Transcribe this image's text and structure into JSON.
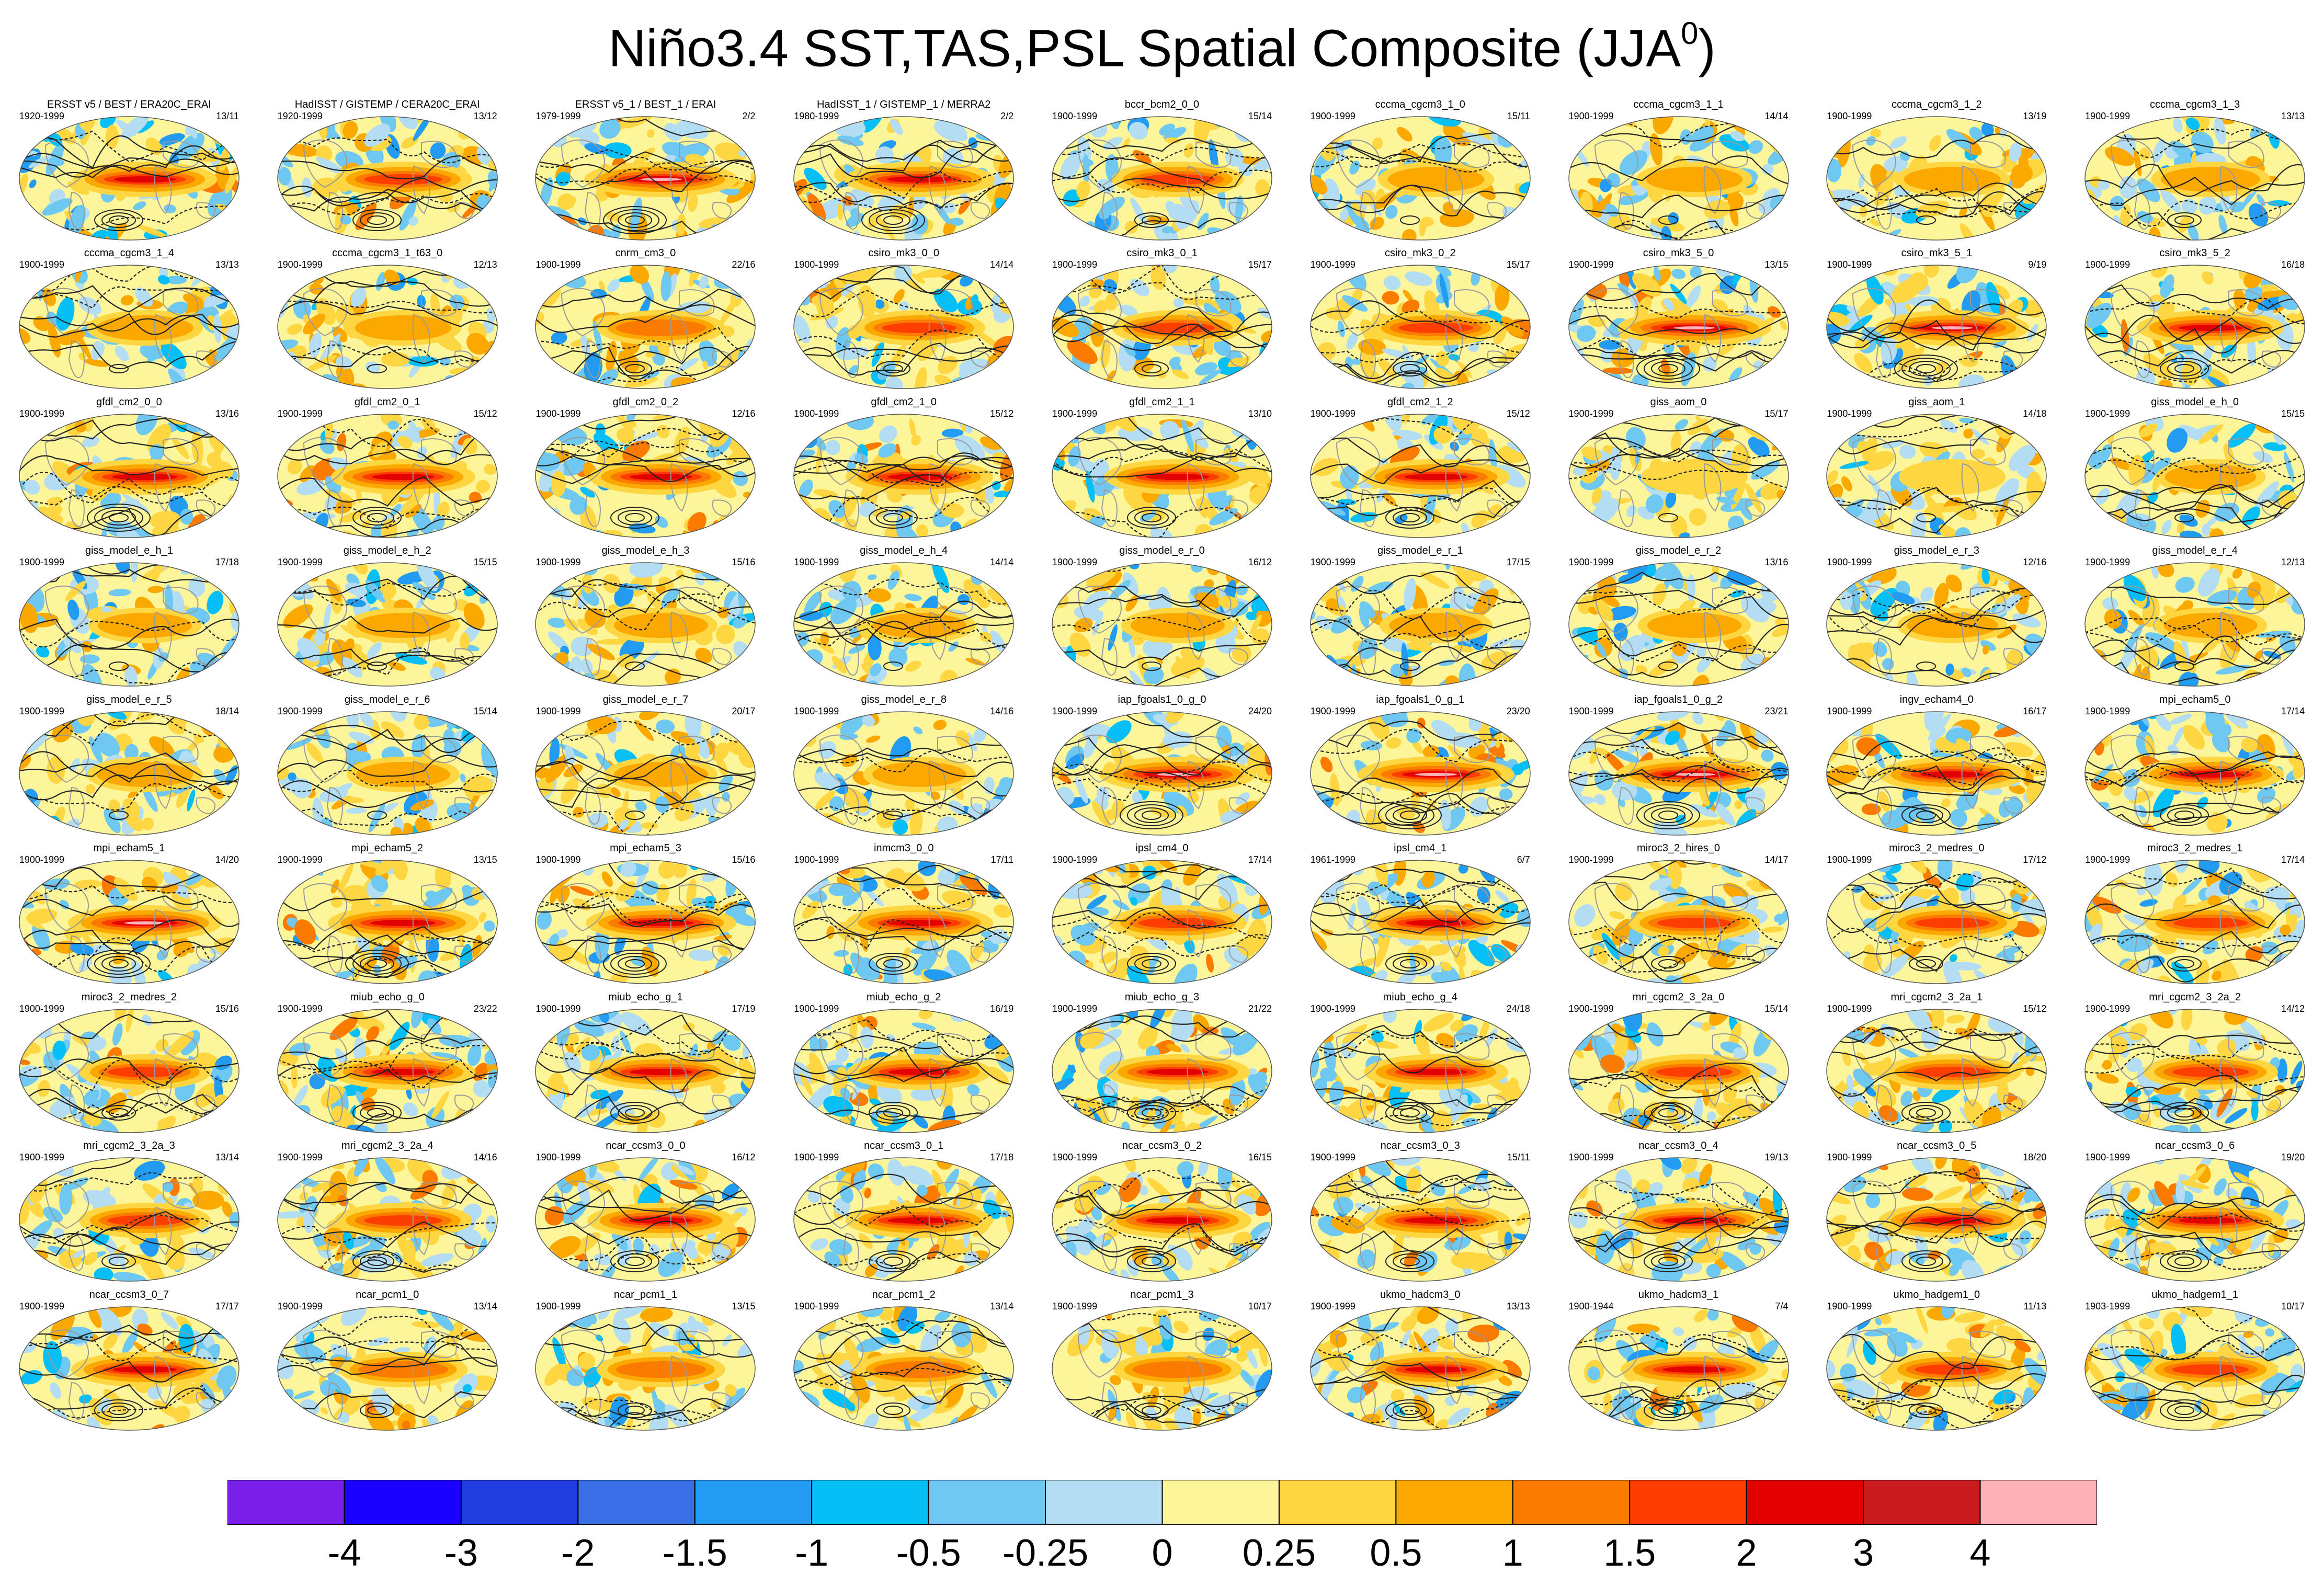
{
  "title": "Niño3.4 SST,TAS,PSL Spatial Composite (JJA",
  "title_superscript": "0",
  "title_close": ")",
  "chart_data": {
    "type": "heatmap",
    "description_type": "map-composite-panels",
    "colorbar": {
      "labels": [
        "-4",
        "-3",
        "-2",
        "-1.5",
        "-1",
        "-0.5",
        "-0.25",
        "0",
        "0.25",
        "0.5",
        "1",
        "1.5",
        "2",
        "3",
        "4"
      ],
      "colors": [
        "#7a1fea",
        "#1900ff",
        "#233ee0",
        "#3b6fe8",
        "#229bf2",
        "#06bff7",
        "#6ec8f2",
        "#b3ddf2",
        "#fdf59a",
        "#fdd642",
        "#fba800",
        "#fb7a00",
        "#fd3e00",
        "#e30000",
        "#ca1b1e",
        "#fdb2b8"
      ]
    },
    "panels": [
      {
        "name": "ERSST v5 / BEST / ERA20C_ERAI",
        "period": "1920-1999",
        "count": "13/11",
        "intensity": 0.8
      },
      {
        "name": "HadISST / GISTEMP / CERA20C_ERAI",
        "period": "1920-1999",
        "count": "13/12",
        "intensity": 0.7
      },
      {
        "name": "ERSST v5_1 / BEST_1 / ERAI",
        "period": "1979-1999",
        "count": "2/2",
        "intensity": 0.95
      },
      {
        "name": "HadISST_1 / GISTEMP_1 / MERRA2",
        "period": "1980-1999",
        "count": "2/2",
        "intensity": 0.9
      },
      {
        "name": "bccr_bcm2_0_0",
        "period": "1900-1999",
        "count": "15/14",
        "intensity": 0.6
      },
      {
        "name": "cccma_cgcm3_1_0",
        "period": "1900-1999",
        "count": "15/11",
        "intensity": 0.35
      },
      {
        "name": "cccma_cgcm3_1_1",
        "period": "1900-1999",
        "count": "14/14",
        "intensity": 0.35
      },
      {
        "name": "cccma_cgcm3_1_2",
        "period": "1900-1999",
        "count": "13/19",
        "intensity": 0.35
      },
      {
        "name": "cccma_cgcm3_1_3",
        "period": "1900-1999",
        "count": "13/13",
        "intensity": 0.4
      },
      {
        "name": "cccma_cgcm3_1_4",
        "period": "1900-1999",
        "count": "13/13",
        "intensity": 0.35
      },
      {
        "name": "cccma_cgcm3_1_t63_0",
        "period": "1900-1999",
        "count": "12/13",
        "intensity": 0.35
      },
      {
        "name": "cnrm_cm3_0",
        "period": "1900-1999",
        "count": "22/16",
        "intensity": 0.55
      },
      {
        "name": "csiro_mk3_0_0",
        "period": "1900-1999",
        "count": "14/14",
        "intensity": 0.6
      },
      {
        "name": "csiro_mk3_0_1",
        "period": "1900-1999",
        "count": "15/17",
        "intensity": 0.6
      },
      {
        "name": "csiro_mk3_0_2",
        "period": "1900-1999",
        "count": "15/17",
        "intensity": 0.6
      },
      {
        "name": "csiro_mk3_5_0",
        "period": "1900-1999",
        "count": "13/15",
        "intensity": 0.95
      },
      {
        "name": "csiro_mk3_5_1",
        "period": "1900-1999",
        "count": "9/19",
        "intensity": 0.95
      },
      {
        "name": "csiro_mk3_5_2",
        "period": "1900-1999",
        "count": "16/18",
        "intensity": 0.85
      },
      {
        "name": "gfdl_cm2_0_0",
        "period": "1900-1999",
        "count": "13/16",
        "intensity": 0.9
      },
      {
        "name": "gfdl_cm2_0_1",
        "period": "1900-1999",
        "count": "15/12",
        "intensity": 0.8
      },
      {
        "name": "gfdl_cm2_0_2",
        "period": "1900-1999",
        "count": "12/16",
        "intensity": 0.8
      },
      {
        "name": "gfdl_cm2_1_0",
        "period": "1900-1999",
        "count": "15/12",
        "intensity": 0.85
      },
      {
        "name": "gfdl_cm2_1_1",
        "period": "1900-1999",
        "count": "13/10",
        "intensity": 0.85
      },
      {
        "name": "gfdl_cm2_1_2",
        "period": "1900-1999",
        "count": "15/12",
        "intensity": 0.85
      },
      {
        "name": "giss_aom_0",
        "period": "1900-1999",
        "count": "15/17",
        "intensity": 0.2
      },
      {
        "name": "giss_aom_1",
        "period": "1900-1999",
        "count": "14/18",
        "intensity": 0.2
      },
      {
        "name": "giss_model_e_h_0",
        "period": "1900-1999",
        "count": "15/15",
        "intensity": 0.25
      },
      {
        "name": "giss_model_e_h_1",
        "period": "1900-1999",
        "count": "17/18",
        "intensity": 0.3
      },
      {
        "name": "giss_model_e_h_2",
        "period": "1900-1999",
        "count": "15/15",
        "intensity": 0.3
      },
      {
        "name": "giss_model_e_h_3",
        "period": "1900-1999",
        "count": "15/16",
        "intensity": 0.3
      },
      {
        "name": "giss_model_e_h_4",
        "period": "1900-1999",
        "count": "14/14",
        "intensity": 0.3
      },
      {
        "name": "giss_model_e_r_0",
        "period": "1900-1999",
        "count": "16/12",
        "intensity": 0.3
      },
      {
        "name": "giss_model_e_r_1",
        "period": "1900-1999",
        "count": "17/15",
        "intensity": 0.3
      },
      {
        "name": "giss_model_e_r_2",
        "period": "1900-1999",
        "count": "13/16",
        "intensity": 0.3
      },
      {
        "name": "giss_model_e_r_3",
        "period": "1900-1999",
        "count": "12/16",
        "intensity": 0.25
      },
      {
        "name": "giss_model_e_r_4",
        "period": "1900-1999",
        "count": "12/13",
        "intensity": 0.3
      },
      {
        "name": "giss_model_e_r_5",
        "period": "1900-1999",
        "count": "18/14",
        "intensity": 0.35
      },
      {
        "name": "giss_model_e_r_6",
        "period": "1900-1999",
        "count": "15/14",
        "intensity": 0.3
      },
      {
        "name": "giss_model_e_r_7",
        "period": "1900-1999",
        "count": "20/17",
        "intensity": 0.3
      },
      {
        "name": "giss_model_e_r_8",
        "period": "1900-1999",
        "count": "14/16",
        "intensity": 0.3
      },
      {
        "name": "iap_fgoals1_0_g_0",
        "period": "1900-1999",
        "count": "24/20",
        "intensity": 1.0
      },
      {
        "name": "iap_fgoals1_0_g_1",
        "period": "1900-1999",
        "count": "23/20",
        "intensity": 1.0
      },
      {
        "name": "iap_fgoals1_0_g_2",
        "period": "1900-1999",
        "count": "23/21",
        "intensity": 1.0
      },
      {
        "name": "ingv_echam4_0",
        "period": "1900-1999",
        "count": "16/17",
        "intensity": 0.85
      },
      {
        "name": "mpi_echam5_0",
        "period": "1900-1999",
        "count": "17/14",
        "intensity": 0.85
      },
      {
        "name": "mpi_echam5_1",
        "period": "1900-1999",
        "count": "14/20",
        "intensity": 0.95
      },
      {
        "name": "mpi_echam5_2",
        "period": "1900-1999",
        "count": "13/15",
        "intensity": 0.9
      },
      {
        "name": "mpi_echam5_3",
        "period": "1900-1999",
        "count": "15/16",
        "intensity": 0.9
      },
      {
        "name": "inmcm3_0_0",
        "period": "1900-1999",
        "count": "17/11",
        "intensity": 0.85
      },
      {
        "name": "ipsl_cm4_0",
        "period": "1900-1999",
        "count": "17/14",
        "intensity": 0.7
      },
      {
        "name": "ipsl_cm4_1",
        "period": "1961-1999",
        "count": "6/7",
        "intensity": 0.75
      },
      {
        "name": "miroc3_2_hires_0",
        "period": "1900-1999",
        "count": "14/17",
        "intensity": 0.6
      },
      {
        "name": "miroc3_2_medres_0",
        "period": "1900-1999",
        "count": "17/12",
        "intensity": 0.6
      },
      {
        "name": "miroc3_2_medres_1",
        "period": "1900-1999",
        "count": "17/14",
        "intensity": 0.6
      },
      {
        "name": "miroc3_2_medres_2",
        "period": "1900-1999",
        "count": "15/16",
        "intensity": 0.6
      },
      {
        "name": "miub_echo_g_0",
        "period": "1900-1999",
        "count": "23/22",
        "intensity": 0.8
      },
      {
        "name": "miub_echo_g_1",
        "period": "1900-1999",
        "count": "17/19",
        "intensity": 0.8
      },
      {
        "name": "miub_echo_g_2",
        "period": "1900-1999",
        "count": "16/19",
        "intensity": 0.8
      },
      {
        "name": "miub_echo_g_3",
        "period": "1900-1999",
        "count": "21/22",
        "intensity": 0.8
      },
      {
        "name": "miub_echo_g_4",
        "period": "1900-1999",
        "count": "24/18",
        "intensity": 0.8
      },
      {
        "name": "mri_cgcm2_3_2a_0",
        "period": "1900-1999",
        "count": "15/14",
        "intensity": 0.65
      },
      {
        "name": "mri_cgcm2_3_2a_1",
        "period": "1900-1999",
        "count": "15/12",
        "intensity": 0.7
      },
      {
        "name": "mri_cgcm2_3_2a_2",
        "period": "1900-1999",
        "count": "14/12",
        "intensity": 0.65
      },
      {
        "name": "mri_cgcm2_3_2a_3",
        "period": "1900-1999",
        "count": "13/14",
        "intensity": 0.6
      },
      {
        "name": "mri_cgcm2_3_2a_4",
        "period": "1900-1999",
        "count": "14/16",
        "intensity": 0.7
      },
      {
        "name": "ncar_ccsm3_0_0",
        "period": "1900-1999",
        "count": "16/12",
        "intensity": 0.85
      },
      {
        "name": "ncar_ccsm3_0_1",
        "period": "1900-1999",
        "count": "17/18",
        "intensity": 0.85
      },
      {
        "name": "ncar_ccsm3_0_2",
        "period": "1900-1999",
        "count": "16/15",
        "intensity": 0.85
      },
      {
        "name": "ncar_ccsm3_0_3",
        "period": "1900-1999",
        "count": "15/11",
        "intensity": 0.85
      },
      {
        "name": "ncar_ccsm3_0_4",
        "period": "1900-1999",
        "count": "19/13",
        "intensity": 0.85
      },
      {
        "name": "ncar_ccsm3_0_5",
        "period": "1900-1999",
        "count": "18/20",
        "intensity": 0.85
      },
      {
        "name": "ncar_ccsm3_0_6",
        "period": "1900-1999",
        "count": "19/20",
        "intensity": 0.85
      },
      {
        "name": "ncar_ccsm3_0_7",
        "period": "1900-1999",
        "count": "17/17",
        "intensity": 0.85
      },
      {
        "name": "ncar_pcm1_0",
        "period": "1900-1999",
        "count": "13/14",
        "intensity": 0.55
      },
      {
        "name": "ncar_pcm1_1",
        "period": "1900-1999",
        "count": "13/15",
        "intensity": 0.55
      },
      {
        "name": "ncar_pcm1_2",
        "period": "1900-1999",
        "count": "13/14",
        "intensity": 0.55
      },
      {
        "name": "ncar_pcm1_3",
        "period": "1900-1999",
        "count": "10/17",
        "intensity": 0.55
      },
      {
        "name": "ukmo_hadcm3_0",
        "period": "1900-1999",
        "count": "13/13",
        "intensity": 0.8
      },
      {
        "name": "ukmo_hadcm3_1",
        "period": "1900-1944",
        "count": "7/4",
        "intensity": 0.85
      },
      {
        "name": "ukmo_hadgem1_0",
        "period": "1900-1999",
        "count": "11/13",
        "intensity": 0.6
      },
      {
        "name": "ukmo_hadgem1_1",
        "period": "1903-1999",
        "count": "10/17",
        "intensity": 0.65
      }
    ]
  }
}
